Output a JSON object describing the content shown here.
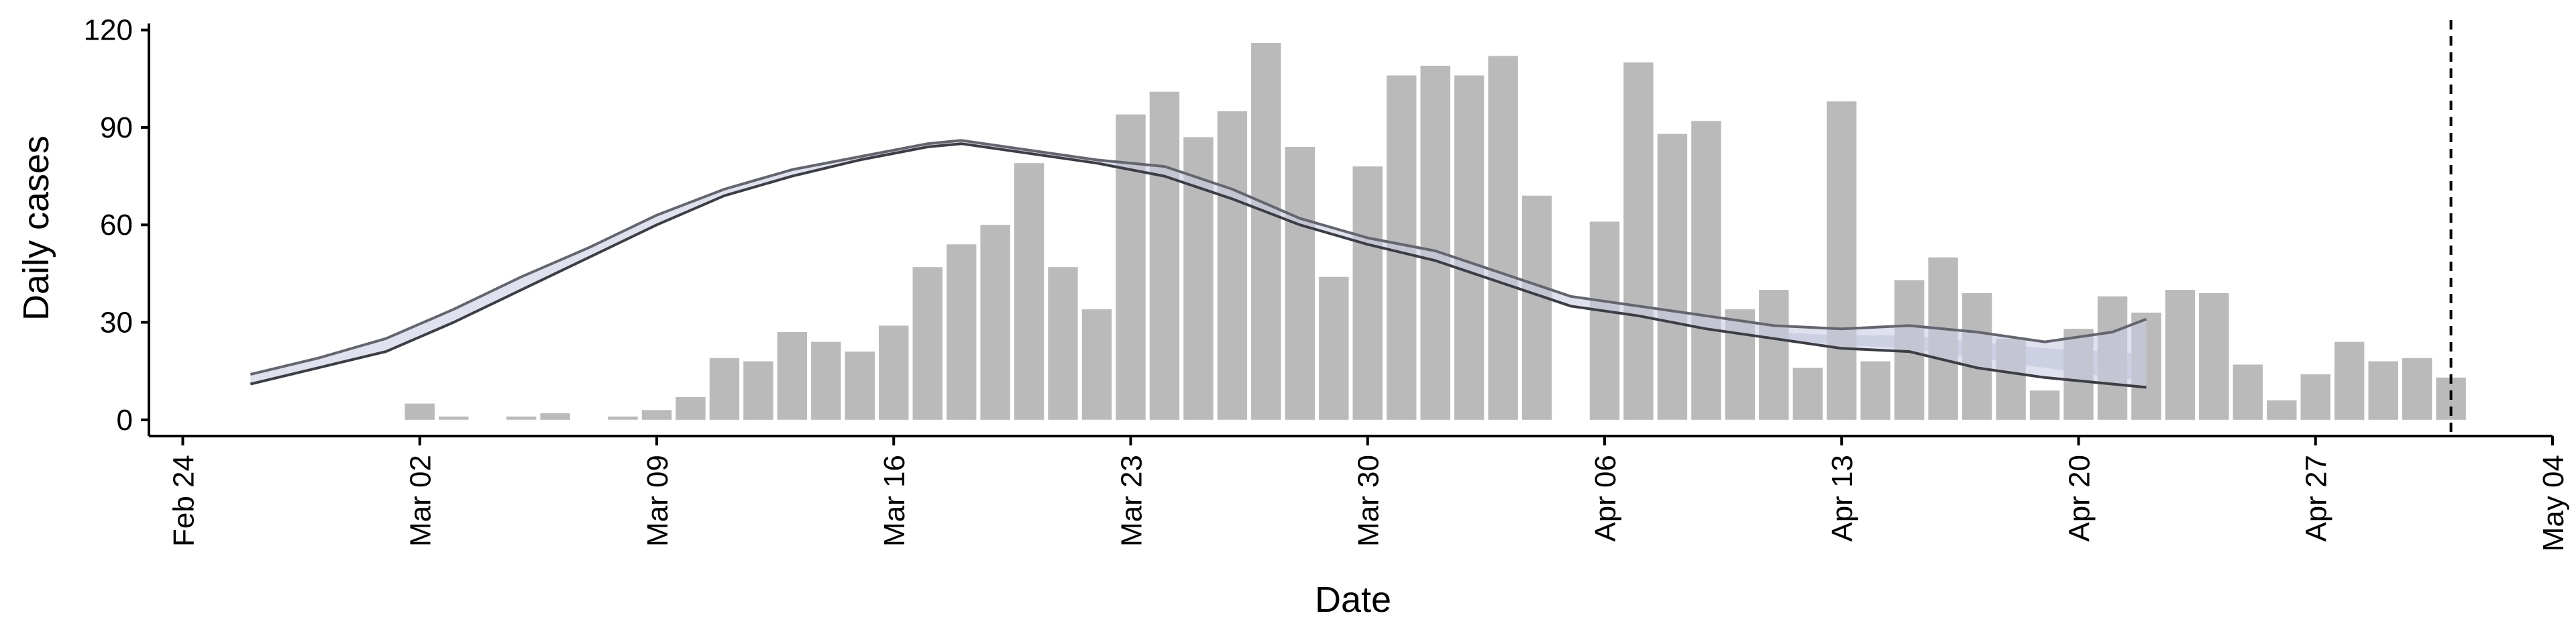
{
  "chart_data": {
    "type": "bar",
    "title": "",
    "xlabel": "Date",
    "ylabel": "Daily cases",
    "xlim": [
      "2020-02-23",
      "2020-05-04"
    ],
    "ylim": [
      -5,
      122
    ],
    "y_ticks": [
      0,
      30,
      60,
      90,
      120
    ],
    "x_ticks": [
      {
        "date": "2020-02-24",
        "label": "Feb 24"
      },
      {
        "date": "2020-03-02",
        "label": "Mar 02"
      },
      {
        "date": "2020-03-09",
        "label": "Mar 09"
      },
      {
        "date": "2020-03-16",
        "label": "Mar 16"
      },
      {
        "date": "2020-03-23",
        "label": "Mar 23"
      },
      {
        "date": "2020-03-30",
        "label": "Mar 30"
      },
      {
        "date": "2020-04-06",
        "label": "Apr 06"
      },
      {
        "date": "2020-04-13",
        "label": "Apr 13"
      },
      {
        "date": "2020-04-20",
        "label": "Apr 20"
      },
      {
        "date": "2020-04-27",
        "label": "Apr 27"
      },
      {
        "date": "2020-05-04",
        "label": "May 04"
      }
    ],
    "bars": {
      "color": "#bababa",
      "dates": [
        "2020-03-02",
        "2020-03-03",
        "2020-03-04",
        "2020-03-05",
        "2020-03-06",
        "2020-03-07",
        "2020-03-08",
        "2020-03-09",
        "2020-03-10",
        "2020-03-11",
        "2020-03-12",
        "2020-03-13",
        "2020-03-14",
        "2020-03-15",
        "2020-03-16",
        "2020-03-17",
        "2020-03-18",
        "2020-03-19",
        "2020-03-20",
        "2020-03-21",
        "2020-03-22",
        "2020-03-23",
        "2020-03-24",
        "2020-03-25",
        "2020-03-26",
        "2020-03-27",
        "2020-03-28",
        "2020-03-29",
        "2020-03-30",
        "2020-03-31",
        "2020-04-01",
        "2020-04-02",
        "2020-04-03",
        "2020-04-04",
        "2020-04-05",
        "2020-04-06",
        "2020-04-07",
        "2020-04-08",
        "2020-04-09",
        "2020-04-10",
        "2020-04-11",
        "2020-04-12",
        "2020-04-13",
        "2020-04-14",
        "2020-04-15",
        "2020-04-16",
        "2020-04-17",
        "2020-04-18",
        "2020-04-19",
        "2020-04-20",
        "2020-04-21",
        "2020-04-22",
        "2020-04-23",
        "2020-04-24",
        "2020-04-25",
        "2020-04-26",
        "2020-04-27",
        "2020-04-28",
        "2020-04-29",
        "2020-04-30",
        "2020-05-01"
      ],
      "values": [
        5,
        1,
        0,
        1,
        2,
        0,
        1,
        3,
        7,
        19,
        18,
        27,
        24,
        21,
        29,
        47,
        54,
        60,
        79,
        47,
        34,
        94,
        101,
        87,
        95,
        116,
        84,
        44,
        78,
        106,
        109,
        106,
        112,
        69,
        0,
        61,
        110,
        88,
        92,
        34,
        40,
        16,
        98,
        18,
        43,
        50,
        39,
        25,
        9,
        28,
        38,
        33,
        40,
        39,
        17,
        6,
        14,
        24,
        18,
        19,
        13
      ]
    },
    "series": [
      {
        "color": "#65656f",
        "x": [
          "2020-02-26",
          "2020-02-28",
          "2020-03-01",
          "2020-03-03",
          "2020-03-05",
          "2020-03-07",
          "2020-03-09",
          "2020-03-11",
          "2020-03-13",
          "2020-03-15",
          "2020-03-17",
          "2020-03-18",
          "2020-03-20",
          "2020-03-22",
          "2020-03-24",
          "2020-03-26",
          "2020-03-28",
          "2020-03-30",
          "2020-04-01",
          "2020-04-03",
          "2020-04-05",
          "2020-04-07",
          "2020-04-09",
          "2020-04-11",
          "2020-04-13",
          "2020-04-15",
          "2020-04-17",
          "2020-04-19",
          "2020-04-21",
          "2020-04-22"
        ],
        "y": [
          14,
          19,
          25,
          34,
          44,
          53,
          63,
          71,
          77,
          81,
          85,
          86,
          83,
          80,
          78,
          71,
          62,
          56,
          52,
          45,
          38,
          35,
          32,
          29,
          28,
          29,
          27,
          24,
          27,
          31
        ]
      },
      {
        "color": "#3d3d46",
        "x": [
          "2020-02-26",
          "2020-02-28",
          "2020-03-01",
          "2020-03-03",
          "2020-03-05",
          "2020-03-07",
          "2020-03-09",
          "2020-03-11",
          "2020-03-13",
          "2020-03-15",
          "2020-03-17",
          "2020-03-18",
          "2020-03-20",
          "2020-03-22",
          "2020-03-24",
          "2020-03-26",
          "2020-03-28",
          "2020-03-30",
          "2020-04-01",
          "2020-04-03",
          "2020-04-05",
          "2020-04-07",
          "2020-04-09",
          "2020-04-11",
          "2020-04-13",
          "2020-04-15",
          "2020-04-17",
          "2020-04-19",
          "2020-04-21",
          "2020-04-22"
        ],
        "y": [
          11,
          16,
          21,
          30,
          40,
          50,
          60,
          69,
          75,
          80,
          84,
          85,
          82,
          79,
          75,
          68,
          60,
          54,
          49,
          42,
          35,
          32,
          28,
          25,
          22,
          21,
          16,
          13,
          11,
          10
        ]
      }
    ],
    "uncertainty_band": {
      "color": "#a8afc8",
      "x": [
        "2020-04-11",
        "2020-04-13",
        "2020-04-15",
        "2020-04-17",
        "2020-04-19",
        "2020-04-21",
        "2020-04-22"
      ],
      "upper": [
        27,
        26,
        26,
        24,
        22,
        21,
        20
      ],
      "lower": [
        25,
        23,
        22,
        19,
        16,
        13,
        12
      ]
    },
    "reference_line": {
      "date": "2020-05-01",
      "style": "dashed",
      "color": "#000000"
    },
    "grid": false
  }
}
